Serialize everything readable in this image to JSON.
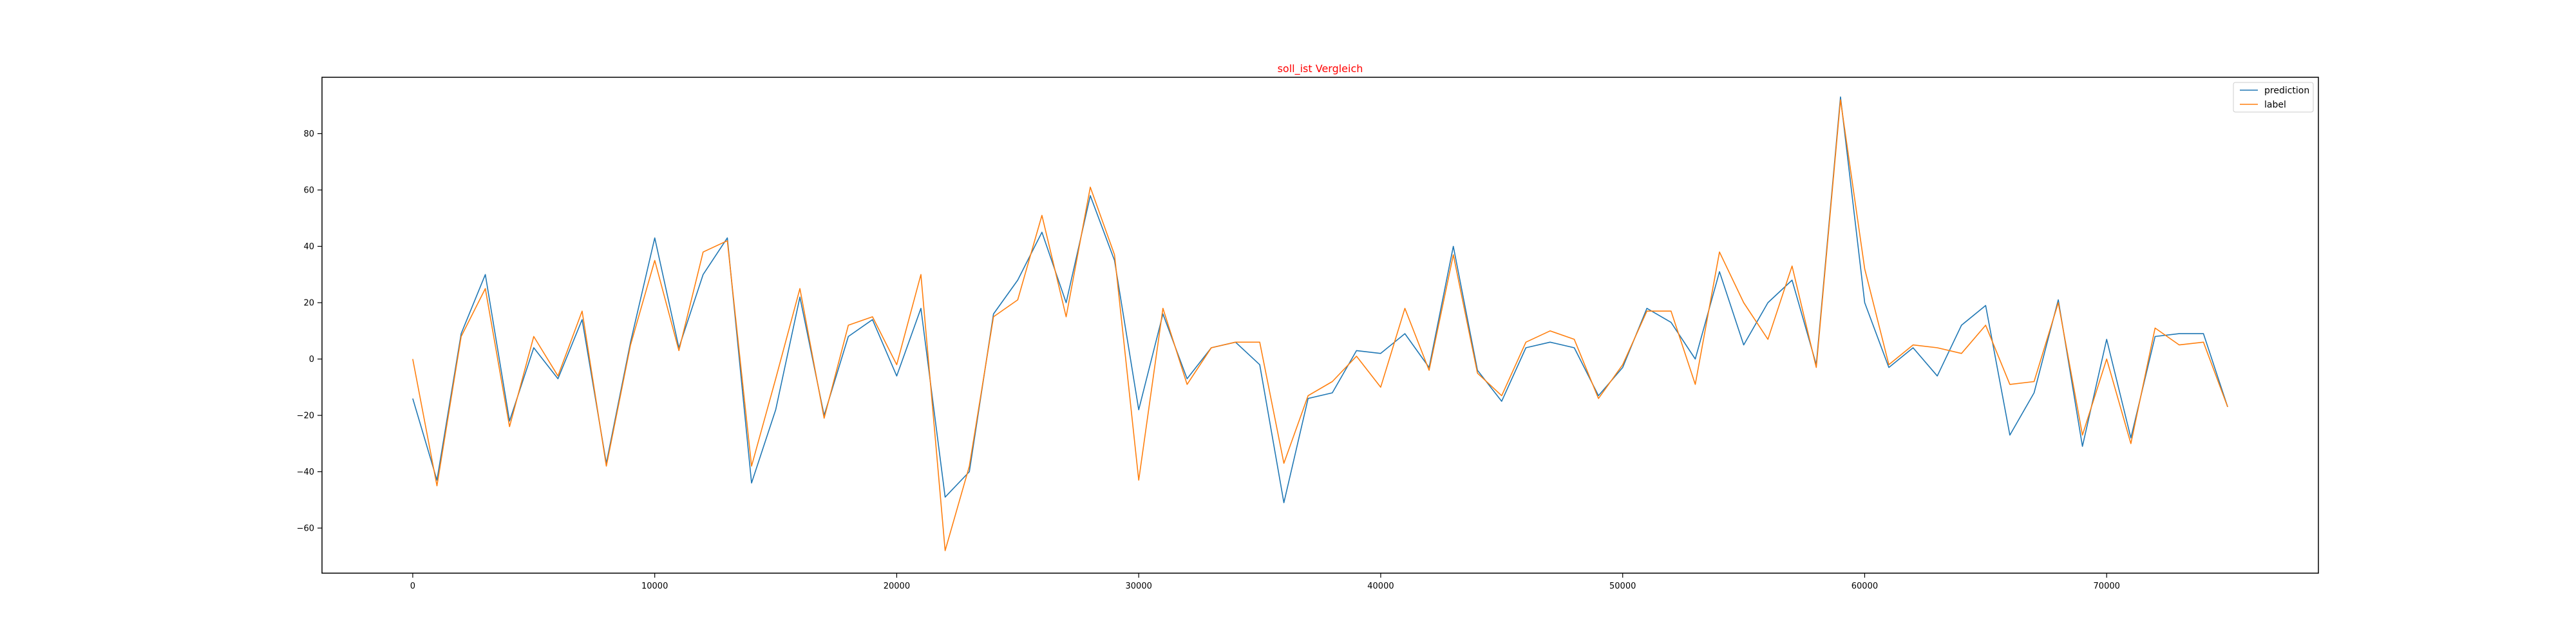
{
  "chart_data": {
    "type": "line",
    "title": "soll_ist Vergleich",
    "title_color": "#ff0000",
    "xlabel": "",
    "ylabel": "",
    "xlim": [
      -3750,
      78750
    ],
    "ylim": [
      -76,
      100
    ],
    "x_ticks": [
      0,
      10000,
      20000,
      30000,
      40000,
      50000,
      60000,
      70000
    ],
    "y_ticks": [
      -60,
      -40,
      -20,
      0,
      20,
      40,
      60,
      80
    ],
    "grid": false,
    "legend_position": "top-right",
    "x": [
      0,
      1000,
      2000,
      3000,
      4000,
      5000,
      6000,
      7000,
      8000,
      9000,
      10000,
      11000,
      12000,
      13000,
      14000,
      15000,
      16000,
      17000,
      18000,
      19000,
      20000,
      21000,
      22000,
      23000,
      24000,
      25000,
      26000,
      27000,
      28000,
      29000,
      30000,
      31000,
      32000,
      33000,
      34000,
      35000,
      36000,
      37000,
      38000,
      39000,
      40000,
      41000,
      42000,
      43000,
      44000,
      45000,
      46000,
      47000,
      48000,
      49000,
      50000,
      51000,
      52000,
      53000,
      54000,
      55000,
      56000,
      57000,
      58000,
      59000,
      60000,
      61000,
      62000,
      63000,
      64000,
      65000,
      66000,
      67000,
      68000,
      69000,
      70000,
      71000,
      72000,
      73000,
      74000,
      75000
    ],
    "series": [
      {
        "name": "prediction",
        "color": "#1f77b4",
        "values": [
          -14,
          -43,
          9,
          30,
          -22,
          4,
          -7,
          14,
          -37,
          6,
          43,
          4,
          30,
          43,
          -44,
          -18,
          22,
          -20,
          8,
          14,
          -6,
          18,
          -49,
          -40,
          16,
          28,
          45,
          20,
          58,
          35,
          -18,
          16,
          -7,
          4,
          6,
          -2,
          -51,
          -14,
          -12,
          3,
          2,
          9,
          -3,
          40,
          -4,
          -15,
          4,
          6,
          4,
          -13,
          -3,
          18,
          13,
          0,
          31,
          5,
          20,
          28,
          -2,
          93,
          20,
          -3,
          4,
          -6,
          12,
          19,
          -27,
          -12,
          21,
          -31,
          7,
          -28,
          8,
          9,
          9,
          -17
        ]
      },
      {
        "name": "label",
        "color": "#ff7f0e",
        "values": [
          0,
          -45,
          8,
          25,
          -24,
          8,
          -6,
          17,
          -38,
          5,
          35,
          3,
          38,
          42,
          -38,
          -7,
          25,
          -21,
          12,
          15,
          -2,
          30,
          -68,
          -38,
          15,
          21,
          51,
          15,
          61,
          37,
          -43,
          18,
          -9,
          4,
          6,
          6,
          -37,
          -13,
          -8,
          1,
          -10,
          18,
          -4,
          37,
          -5,
          -13,
          6,
          10,
          7,
          -14,
          -2,
          17,
          17,
          -9,
          38,
          20,
          7,
          33,
          -3,
          92,
          32,
          -2,
          5,
          4,
          2,
          12,
          -9,
          -8,
          20,
          -27,
          0,
          -30,
          11,
          5,
          6,
          -17
        ]
      }
    ]
  }
}
